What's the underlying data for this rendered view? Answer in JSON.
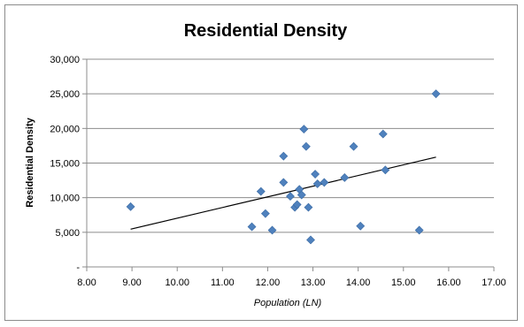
{
  "chart_data": {
    "type": "scatter",
    "title": "Residential Density",
    "xlabel": "Population (LN)",
    "ylabel": "Residential Density",
    "xlim": [
      8,
      17
    ],
    "ylim": [
      0,
      30000
    ],
    "x_ticks": [
      "8.00",
      "9.00",
      "10.00",
      "11.00",
      "12.00",
      "13.00",
      "14.00",
      "15.00",
      "16.00",
      "17.00"
    ],
    "y_ticks": [
      "-",
      "5,000",
      "10,000",
      "15,000",
      "20,000",
      "25,000",
      "30,000"
    ],
    "grid": "horizontal",
    "marker_color": "#4f81bd",
    "trendline": {
      "x": [
        8.97,
        15.72
      ],
      "y": [
        5450,
        15850
      ]
    },
    "points": [
      {
        "x": 8.97,
        "y": 8700
      },
      {
        "x": 11.65,
        "y": 5800
      },
      {
        "x": 11.85,
        "y": 10900
      },
      {
        "x": 11.95,
        "y": 7700
      },
      {
        "x": 12.1,
        "y": 5300
      },
      {
        "x": 12.35,
        "y": 16000
      },
      {
        "x": 12.35,
        "y": 12200
      },
      {
        "x": 12.5,
        "y": 10200
      },
      {
        "x": 12.6,
        "y": 8600
      },
      {
        "x": 12.65,
        "y": 9000
      },
      {
        "x": 12.7,
        "y": 11200
      },
      {
        "x": 12.75,
        "y": 10400
      },
      {
        "x": 12.8,
        "y": 19900
      },
      {
        "x": 12.85,
        "y": 17400
      },
      {
        "x": 12.9,
        "y": 8600
      },
      {
        "x": 12.95,
        "y": 3900
      },
      {
        "x": 13.05,
        "y": 13400
      },
      {
        "x": 13.1,
        "y": 12000
      },
      {
        "x": 13.25,
        "y": 12200
      },
      {
        "x": 13.7,
        "y": 12900
      },
      {
        "x": 13.9,
        "y": 17400
      },
      {
        "x": 14.05,
        "y": 5900
      },
      {
        "x": 14.55,
        "y": 19200
      },
      {
        "x": 14.6,
        "y": 14000
      },
      {
        "x": 15.35,
        "y": 5300
      },
      {
        "x": 15.72,
        "y": 25000
      }
    ]
  }
}
